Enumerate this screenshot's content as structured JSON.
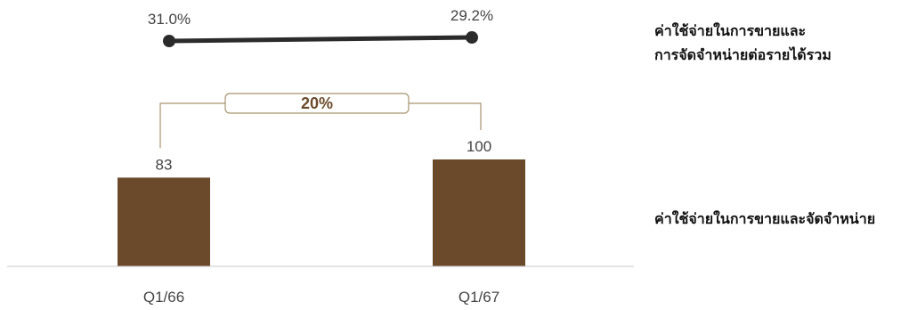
{
  "chart_data": {
    "type": "bar",
    "categories": [
      "Q1/66",
      "Q1/67"
    ],
    "series": [
      {
        "name": "ค่าใช้จ่ายในการขายและจัดจำหน่าย",
        "type": "bar",
        "values": [
          83,
          100
        ],
        "labels": [
          "83",
          "100"
        ],
        "color": "#6b4a2b"
      },
      {
        "name": "ค่าใช้จ่ายในการขายและการจัดจำหน่ายต่อรายได้รวม",
        "type": "line",
        "values": [
          31.0,
          29.2
        ],
        "labels": [
          "31.0%",
          "29.2%"
        ],
        "color": "#2b2b2b"
      }
    ],
    "growth_annotation": "20%",
    "legend": {
      "ratio_lines": [
        "ค่าใช้จ่ายในการขายและ",
        "การจัดจำหน่ายต่อรายได้รวม"
      ],
      "bar_label": "ค่าใช้จ่ายในการขายและจัดจำหน่าย"
    },
    "colors": {
      "bar": "#6b4a2b",
      "line": "#2b2b2b",
      "bracket": "#a8946f",
      "growth_text": "#6b4a2b",
      "axis": "#c8c8c8",
      "label_text": "#444444"
    }
  }
}
